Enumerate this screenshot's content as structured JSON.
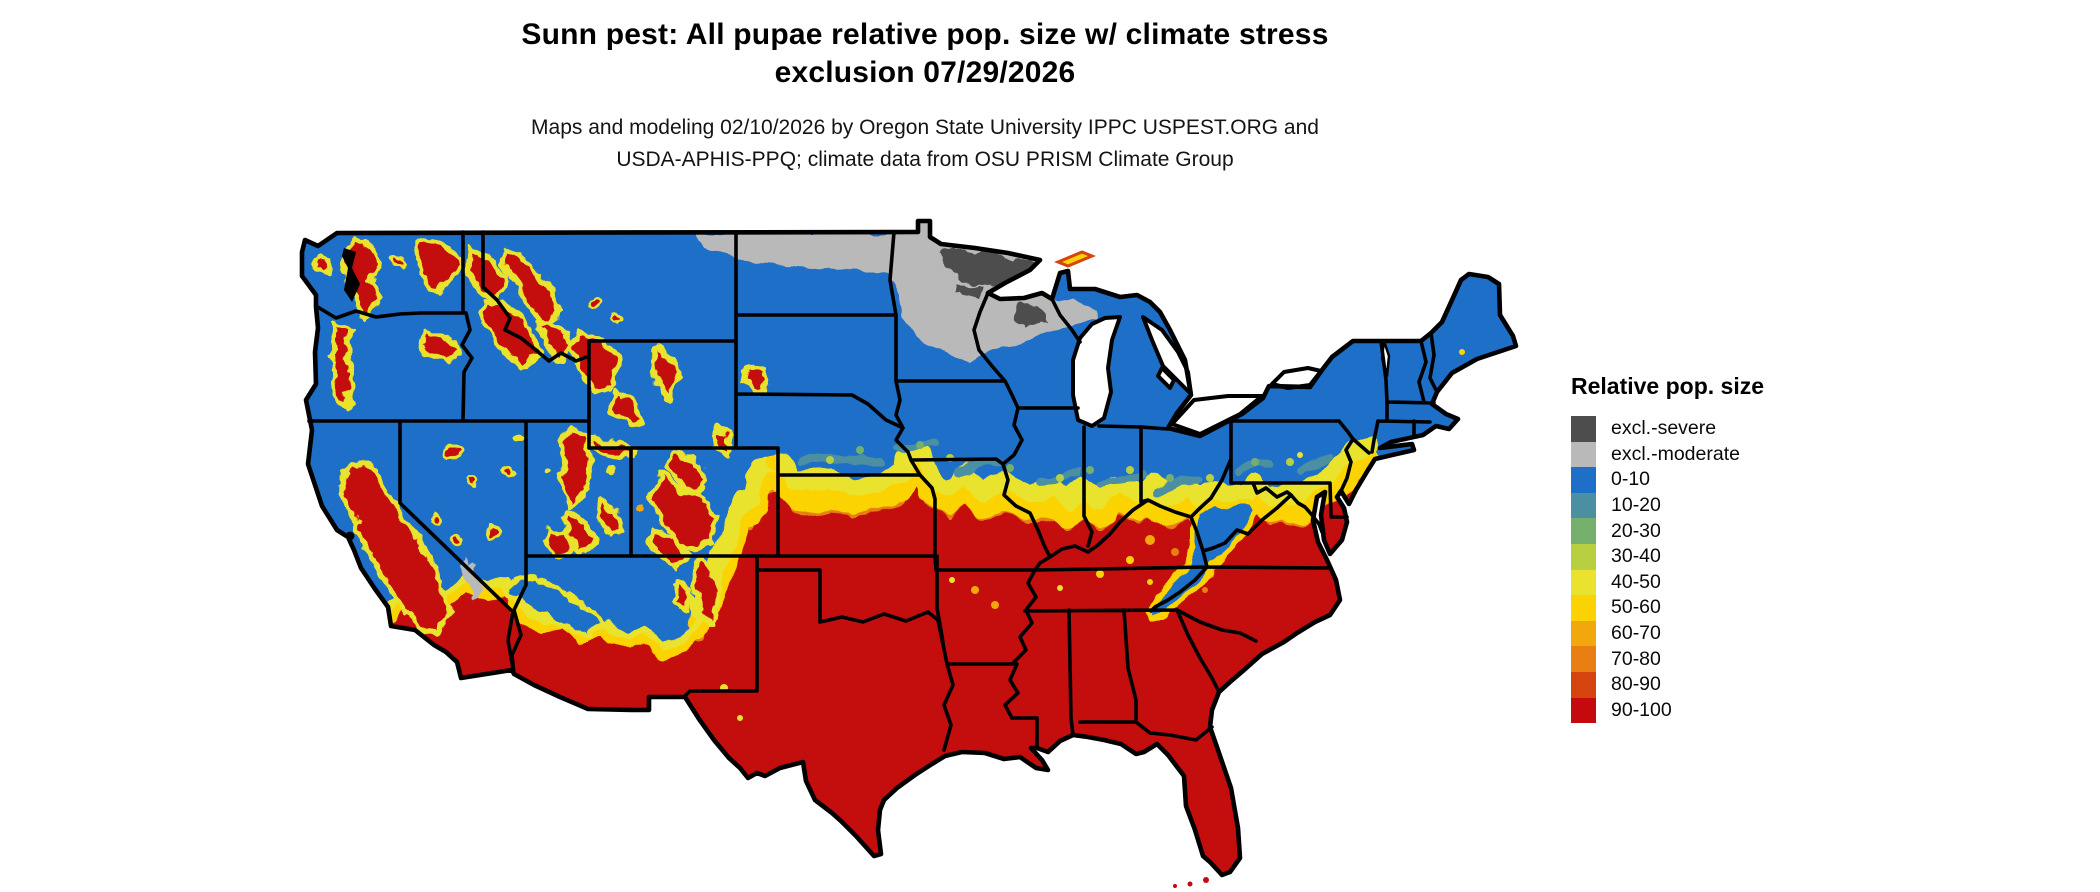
{
  "header": {
    "title_line1": "Sunn pest: All pupae relative pop. size w/ climate stress",
    "title_line2": "exclusion 07/29/2026",
    "subtitle_line1": "Maps and modeling 02/10/2026 by Oregon State University IPPC USPEST.ORG and",
    "subtitle_line2": "USDA-APHIS-PPQ; climate data from OSU PRISM Climate Group"
  },
  "legend": {
    "title": "Relative pop. size",
    "items": [
      {
        "key": "excl-severe",
        "label": "excl.-severe",
        "color": "#4d4d4d"
      },
      {
        "key": "excl-moderate",
        "label": "excl.-moderate",
        "color": "#b9b9b9"
      },
      {
        "key": "0-10",
        "label": "0-10",
        "color": "#1d6fc8"
      },
      {
        "key": "10-20",
        "label": "10-20",
        "color": "#4b8fa2"
      },
      {
        "key": "20-30",
        "label": "20-30",
        "color": "#74b06c"
      },
      {
        "key": "30-40",
        "label": "30-40",
        "color": "#b9cf42"
      },
      {
        "key": "40-50",
        "label": "40-50",
        "color": "#e9e32e"
      },
      {
        "key": "50-60",
        "label": "50-60",
        "color": "#fbd304"
      },
      {
        "key": "60-70",
        "label": "60-70",
        "color": "#f2a80d"
      },
      {
        "key": "70-80",
        "label": "70-80",
        "color": "#e87f13"
      },
      {
        "key": "80-90",
        "label": "80-90",
        "color": "#d5440f"
      },
      {
        "key": "90-100",
        "label": "90-100",
        "color": "#c40a0d"
      }
    ]
  },
  "map": {
    "region": "Contiguous United States",
    "border_color": "#000000",
    "background_color": "#ffffff",
    "regions_depicted": [
      {
        "area": "South, Southeast, southern Plains, lower Mid-Atlantic",
        "value": "90-100"
      },
      {
        "area": "Northern states, Northeast, interior West basins",
        "value": "0-10"
      },
      {
        "area": "Transition band from central Kansas through Iowa, Illinois, Indiana, Ohio, southern Pennsylvania and New Jersey",
        "value": "40-80"
      },
      {
        "area": "Northern Minnesota, northern Wisconsin, parts of Michigan UP and North Dakota border",
        "value": "excl.-moderate"
      },
      {
        "area": "Northeastern Minnesota arrowhead",
        "value": "excl.-severe"
      },
      {
        "area": "Western mountain ranges (Cascades, Sierra Nevada, Idaho Rockies, Yellowstone, Colorado Rockies, Wasatch)",
        "value": "80-100 patches with 40-60 fringes"
      },
      {
        "area": "California Central Valley and southern California deserts",
        "value": "90-100"
      },
      {
        "area": "Appalachian highlands (WV, western VA, eastern TN)",
        "value": "0-10 wedge within red zone"
      }
    ]
  }
}
